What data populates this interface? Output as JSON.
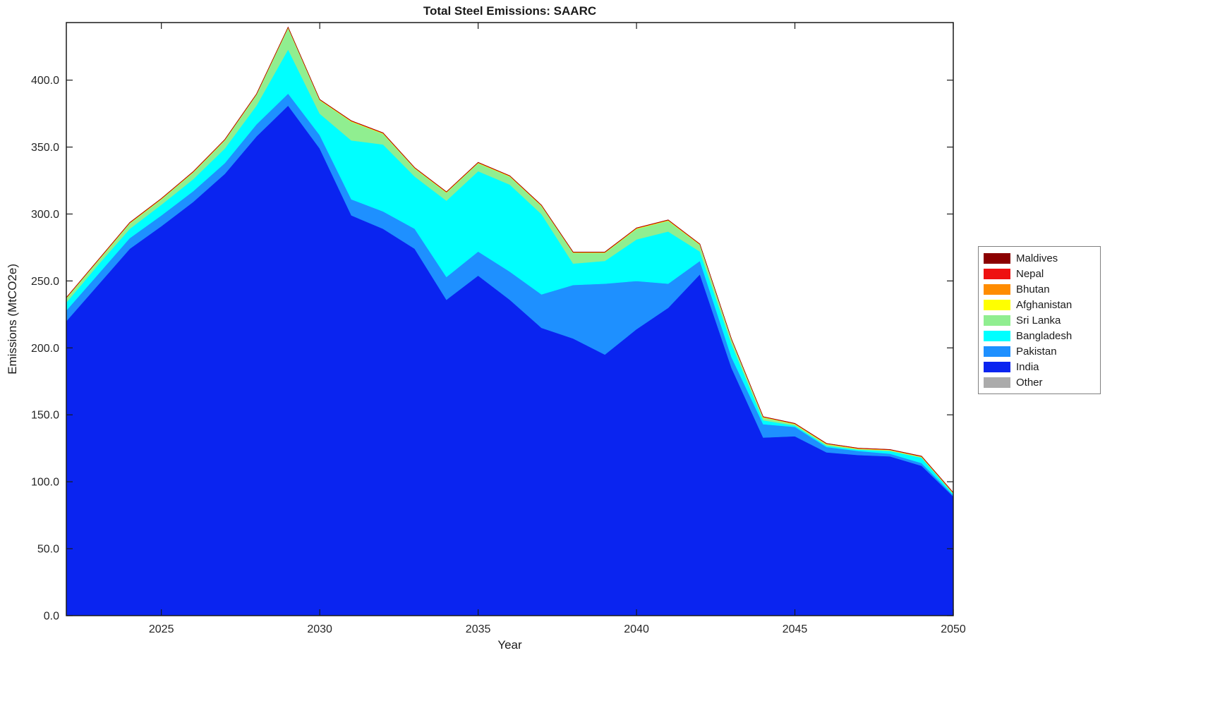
{
  "chart_data": {
    "type": "area",
    "stacked": true,
    "title": "Total Steel Emissions: SAARC",
    "xlabel": "Year",
    "ylabel": "Emissions (MtCO2e)",
    "grid": false,
    "legend_position": "right-outside",
    "xlim": [
      2022,
      2050
    ],
    "ylim": [
      0,
      443
    ],
    "x": [
      2022,
      2023,
      2024,
      2025,
      2026,
      2027,
      2028,
      2029,
      2030,
      2031,
      2032,
      2033,
      2034,
      2035,
      2036,
      2037,
      2038,
      2039,
      2040,
      2041,
      2042,
      2043,
      2044,
      2045,
      2046,
      2047,
      2048,
      2049,
      2050
    ],
    "xticks": [
      2025,
      2030,
      2035,
      2040,
      2045,
      2050
    ],
    "xtick_labels": [
      "2025",
      "2030",
      "2035",
      "2040",
      "2045",
      "2050"
    ],
    "yticks": [
      0,
      50,
      100,
      150,
      200,
      250,
      300,
      350,
      400
    ],
    "ytick_labels": [
      "0.0",
      "50.0",
      "100.0",
      "150.0",
      "200.0",
      "250.0",
      "300.0",
      "350.0",
      "400.0"
    ],
    "legend_order_top_to_bottom": [
      "Maldives",
      "Nepal",
      "Bhutan",
      "Afghanistan",
      "Sri Lanka",
      "Bangladesh",
      "Pakistan",
      "India",
      "Other"
    ],
    "series": [
      {
        "name": "Other",
        "color": "#ABABAB",
        "values": [
          0,
          0,
          0,
          0,
          0,
          0,
          0,
          0,
          0,
          0,
          0,
          0,
          0,
          0,
          0,
          0,
          0,
          0,
          0,
          0,
          0,
          0,
          0,
          0,
          0,
          0,
          0,
          0,
          0
        ]
      },
      {
        "name": "India",
        "color": "#0A24F0",
        "values": [
          220,
          247,
          274,
          291,
          309,
          330,
          358,
          381,
          349,
          299,
          289,
          274,
          236,
          254,
          236,
          215,
          207,
          195,
          214,
          230,
          255,
          185,
          133,
          134,
          122,
          120,
          119,
          112,
          89
        ]
      },
      {
        "name": "Pakistan",
        "color": "#1E90FF",
        "values": [
          8,
          8,
          8,
          8,
          8,
          8,
          9,
          9,
          10,
          12,
          13,
          15,
          17,
          18,
          21,
          25,
          40,
          53,
          36,
          18,
          10,
          8,
          10,
          7,
          4,
          3,
          2,
          2,
          1
        ]
      },
      {
        "name": "Bangladesh",
        "color": "#00FFFF",
        "values": [
          6,
          7,
          7,
          8,
          9,
          11,
          14,
          33,
          16,
          44,
          50,
          39,
          57,
          60,
          65,
          60,
          16,
          17,
          31,
          39,
          7,
          10,
          3,
          1,
          1,
          1,
          2,
          4,
          1
        ]
      },
      {
        "name": "Sri Lanka",
        "color": "#90EE90",
        "values": [
          3,
          3,
          4,
          4,
          5,
          6,
          8,
          16,
          10,
          14,
          8,
          6,
          6,
          6,
          6,
          6,
          8,
          6,
          8,
          8,
          5,
          3,
          2,
          1,
          1,
          0.5,
          0.5,
          0.5,
          0.3
        ]
      },
      {
        "name": "Afghanistan",
        "color": "#FFFF00",
        "values": [
          0.3,
          0.3,
          0.3,
          0.3,
          0.3,
          0.3,
          0.3,
          0.3,
          0.3,
          0.3,
          0.3,
          0.3,
          0.3,
          0.3,
          0.3,
          0.3,
          0.3,
          0.3,
          0.3,
          0.3,
          0.3,
          0.3,
          0.3,
          0.3,
          0.3,
          0.3,
          0.3,
          0.3,
          0.3
        ]
      },
      {
        "name": "Bhutan",
        "color": "#FF8C00",
        "values": [
          0.1,
          0.1,
          0.1,
          0.1,
          0.1,
          0.1,
          0.1,
          0.1,
          0.1,
          0.1,
          0.1,
          0.1,
          0.1,
          0.1,
          0.1,
          0.1,
          0.1,
          0.1,
          0.1,
          0.1,
          0.1,
          0.1,
          0.1,
          0.1,
          0.1,
          0.1,
          0.1,
          0.1,
          0.1
        ]
      },
      {
        "name": "Nepal",
        "color": "#EE1111",
        "values": [
          0.2,
          0.2,
          0.2,
          0.2,
          0.2,
          0.2,
          0.2,
          0.2,
          0.2,
          0.2,
          0.2,
          0.2,
          0.2,
          0.2,
          0.2,
          0.2,
          0.2,
          0.2,
          0.2,
          0.2,
          0.2,
          0.2,
          0.2,
          0.2,
          0.2,
          0.2,
          0.2,
          0.2,
          0.2
        ]
      },
      {
        "name": "Maldives",
        "color": "#8B0000",
        "values": [
          0.05,
          0.05,
          0.05,
          0.05,
          0.05,
          0.05,
          0.05,
          0.05,
          0.05,
          0.05,
          0.05,
          0.05,
          0.05,
          0.05,
          0.05,
          0.05,
          0.05,
          0.05,
          0.05,
          0.05,
          0.05,
          0.05,
          0.05,
          0.05,
          0.05,
          0.05,
          0.05,
          0.05,
          0.05
        ]
      }
    ]
  }
}
